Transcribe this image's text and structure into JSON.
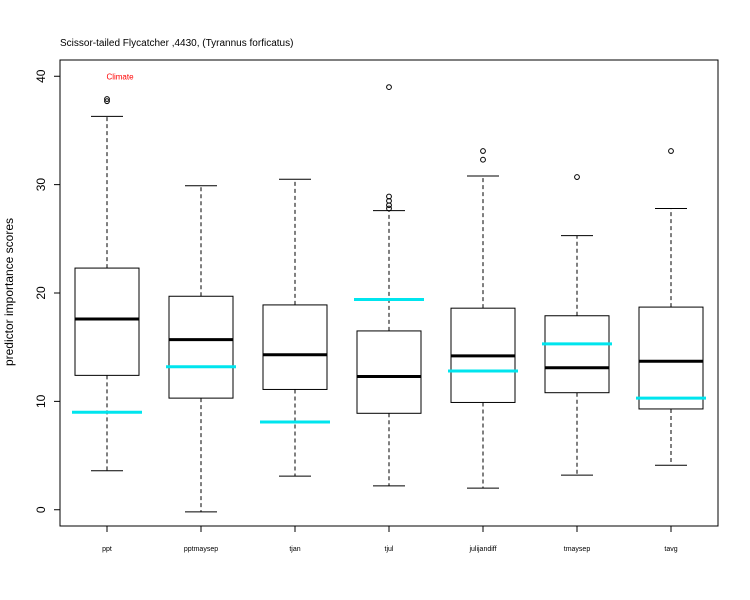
{
  "chart_data": {
    "type": "box",
    "title": "Scissor-tailed Flycatcher ,4430, (Tyrannus forficatus)",
    "xlabel": "",
    "ylabel": "predictor importance scores",
    "ylim": [
      -1.5,
      41.5
    ],
    "yticks": [
      0,
      10,
      20,
      30,
      40
    ],
    "annotation": {
      "text": "Climate",
      "category": "ppt",
      "y": 40,
      "color": "#ff0000"
    },
    "marker_color": "#00e5ee",
    "categories": [
      "ppt",
      "pptmaysep",
      "tjan",
      "tjul",
      "julijandiff",
      "tmaysep",
      "tavg"
    ],
    "boxes": [
      {
        "min": 3.6,
        "q1": 12.4,
        "median": 17.6,
        "q3": 22.3,
        "max": 36.3,
        "outliers": [
          37.7,
          37.9
        ],
        "marker": 9.0
      },
      {
        "min": -0.2,
        "q1": 10.3,
        "median": 15.7,
        "q3": 19.7,
        "max": 29.9,
        "outliers": [],
        "marker": 13.2
      },
      {
        "min": 3.1,
        "q1": 11.1,
        "median": 14.3,
        "q3": 18.9,
        "max": 30.5,
        "outliers": [],
        "marker": 8.1
      },
      {
        "min": 2.2,
        "q1": 8.9,
        "median": 12.3,
        "q3": 16.5,
        "max": 27.6,
        "outliers": [
          27.8,
          28.1,
          28.5,
          28.9,
          39.0
        ],
        "marker": 19.4
      },
      {
        "min": 2.0,
        "q1": 9.9,
        "median": 14.2,
        "q3": 18.6,
        "max": 30.8,
        "outliers": [
          32.3,
          33.1
        ],
        "marker": 12.8
      },
      {
        "min": 3.2,
        "q1": 10.8,
        "median": 13.1,
        "q3": 17.9,
        "max": 25.3,
        "outliers": [
          30.7
        ],
        "marker": 15.3
      },
      {
        "min": 4.1,
        "q1": 9.3,
        "median": 13.7,
        "q3": 18.7,
        "max": 27.8,
        "outliers": [
          33.1
        ],
        "marker": 10.3
      }
    ]
  }
}
